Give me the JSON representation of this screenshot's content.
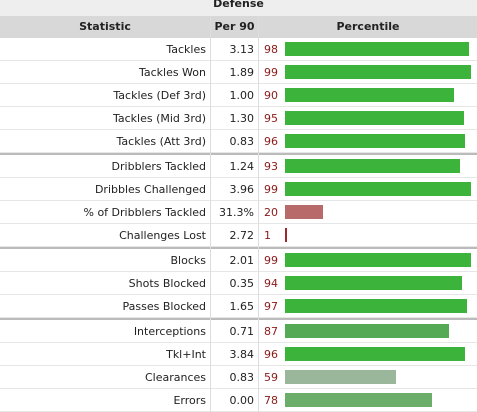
{
  "table": {
    "title": "Defense",
    "headers": [
      "Statistic",
      "Per 90",
      "Percentile"
    ],
    "groups": [
      [
        {
          "stat": "Tackles",
          "per90": "3.13",
          "percentile": 98,
          "color": "#3cb43c"
        },
        {
          "stat": "Tackles Won",
          "per90": "1.89",
          "percentile": 99,
          "color": "#3cb43c"
        },
        {
          "stat": "Tackles (Def 3rd)",
          "per90": "1.00",
          "percentile": 90,
          "color": "#3cb43c"
        },
        {
          "stat": "Tackles (Mid 3rd)",
          "per90": "1.30",
          "percentile": 95,
          "color": "#3cb43c"
        },
        {
          "stat": "Tackles (Att 3rd)",
          "per90": "0.83",
          "percentile": 96,
          "color": "#3cb43c"
        }
      ],
      [
        {
          "stat": "Dribblers Tackled",
          "per90": "1.24",
          "percentile": 93,
          "color": "#3cb43c"
        },
        {
          "stat": "Dribbles Challenged",
          "per90": "3.96",
          "percentile": 99,
          "color": "#3cb43c"
        },
        {
          "stat": "% of Dribblers Tackled",
          "per90": "31.3%",
          "percentile": 20,
          "color": "#b86a6a"
        },
        {
          "stat": "Challenges Lost",
          "per90": "2.72",
          "percentile": 1,
          "color": "#9b2b2b"
        }
      ],
      [
        {
          "stat": "Blocks",
          "per90": "2.01",
          "percentile": 99,
          "color": "#3cb43c"
        },
        {
          "stat": "Shots Blocked",
          "per90": "0.35",
          "percentile": 94,
          "color": "#3cb43c"
        },
        {
          "stat": "Passes Blocked",
          "per90": "1.65",
          "percentile": 97,
          "color": "#3cb43c"
        }
      ],
      [
        {
          "stat": "Interceptions",
          "per90": "0.71",
          "percentile": 87,
          "color": "#55ab55"
        },
        {
          "stat": "Tkl+Int",
          "per90": "3.84",
          "percentile": 96,
          "color": "#3cb43c"
        },
        {
          "stat": "Clearances",
          "per90": "0.83",
          "percentile": 59,
          "color": "#9bb79b"
        },
        {
          "stat": "Errors",
          "per90": "0.00",
          "percentile": 78,
          "color": "#6aae6a"
        }
      ]
    ]
  }
}
